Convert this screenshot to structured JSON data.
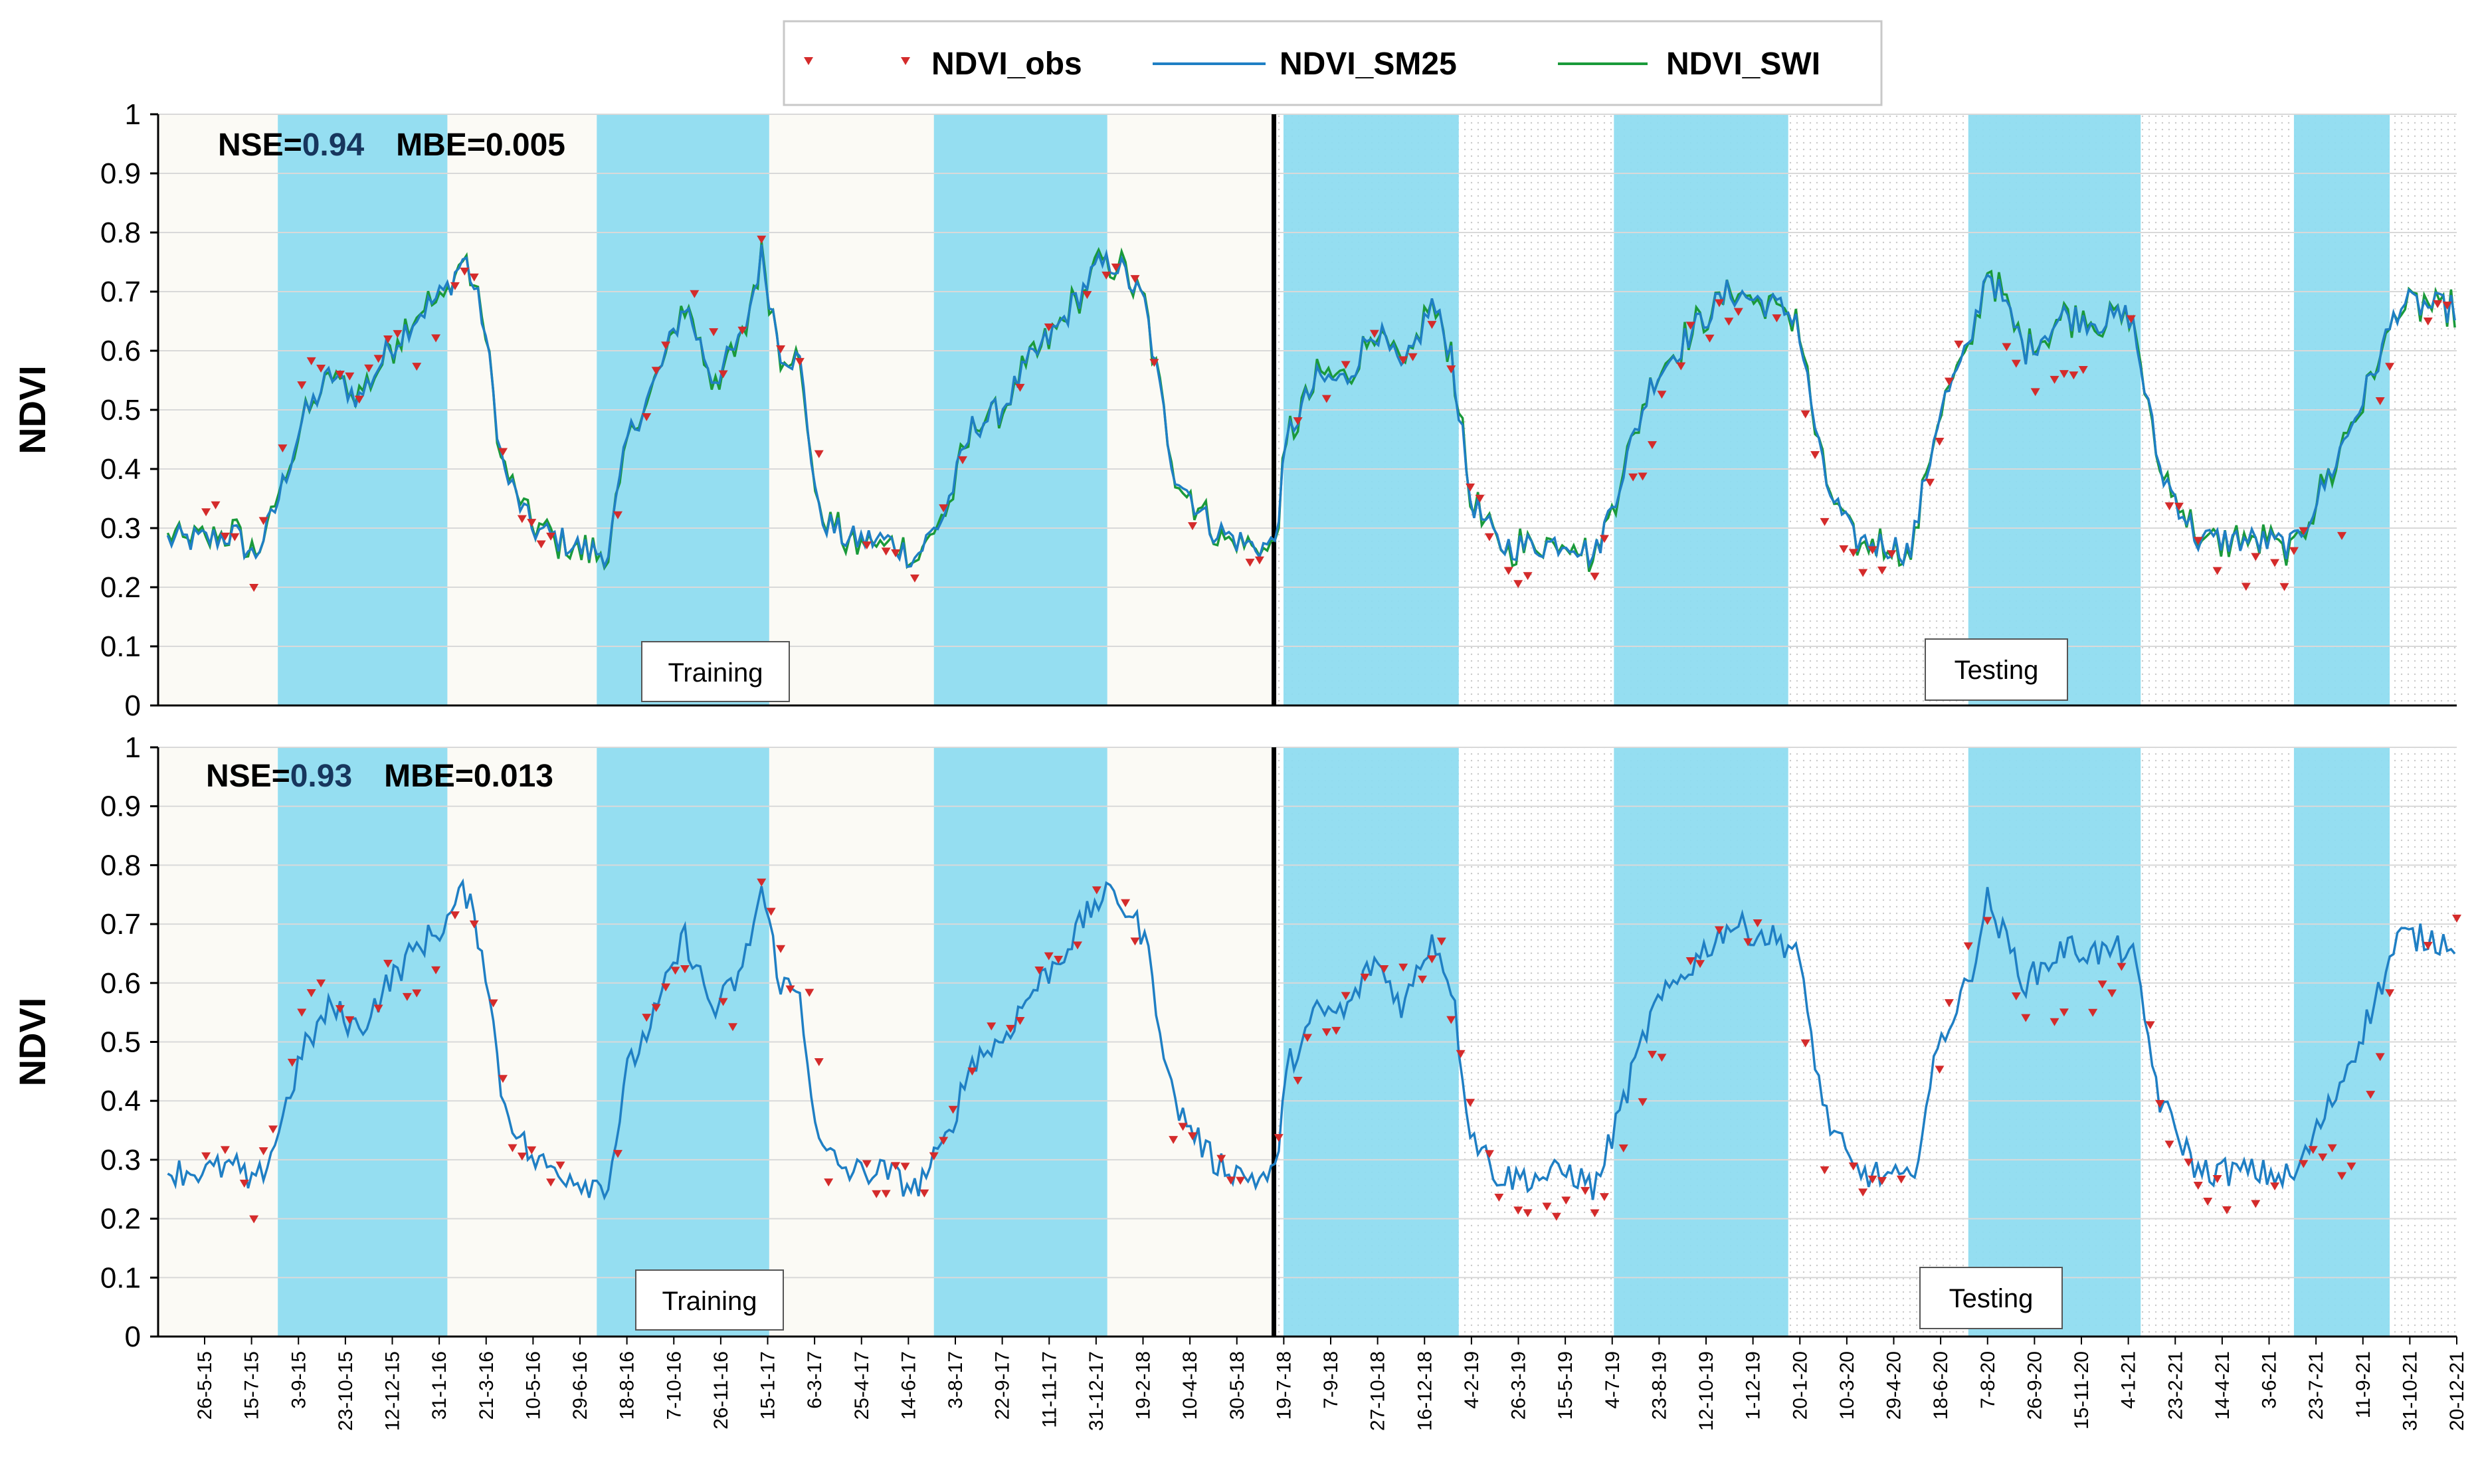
{
  "chart_data": {
    "type": "line",
    "legend": {
      "position": "top-center",
      "entries": [
        {
          "name": "NDVI_obs",
          "marker": "triangle-down",
          "color": "#d42b2b"
        },
        {
          "name": "NDVI_SM25",
          "marker": "line",
          "color": "#1f7fc4"
        },
        {
          "name": "NDVI_SWI",
          "marker": "line",
          "color": "#1a9a3a"
        }
      ]
    },
    "x_tick_labels": [
      "26-5-15",
      "15-7-15",
      "3-9-15",
      "23-10-15",
      "12-12-15",
      "31-1-16",
      "21-3-16",
      "10-5-16",
      "29-6-16",
      "18-8-16",
      "7-10-16",
      "26-11-16",
      "15-1-17",
      "6-3-17",
      "25-4-17",
      "14-6-17",
      "3-8-17",
      "22-9-17",
      "11-11-17",
      "31-12-17",
      "19-2-18",
      "10-4-18",
      "30-5-18",
      "19-7-18",
      "7-9-18",
      "27-10-18",
      "16-12-18",
      "4-2-19",
      "26-3-19",
      "15-5-19",
      "4-7-19",
      "23-8-19",
      "12-10-19",
      "1-12-19",
      "20-1-20",
      "10-3-20",
      "29-4-20",
      "18-6-20",
      "7-8-20",
      "26-9-20",
      "15-11-20",
      "4-1-21",
      "23-2-21",
      "14-4-21",
      "3-6-21",
      "23-7-21",
      "11-9-21",
      "31-10-21",
      "20-12-21"
    ],
    "x_range_days": [
      0,
      2400
    ],
    "season_bands_days": [
      [
        125,
        302
      ],
      [
        458,
        638
      ],
      [
        810,
        991
      ],
      [
        1175,
        1358
      ],
      [
        1520,
        1702
      ],
      [
        1890,
        2070
      ],
      [
        2230,
        2330
      ]
    ],
    "split_day": 1165,
    "phases": [
      "Training",
      "Testing"
    ],
    "panels": [
      {
        "ylabel": "NDVI",
        "ylim": [
          0,
          1
        ],
        "yticks": [
          "0",
          "0.1",
          "0.2",
          "0.3",
          "0.4",
          "0.5",
          "0.6",
          "0.7",
          "0.8",
          "0.9",
          "1"
        ],
        "grid": true,
        "nse_label": "NSE=",
        "nse": "0.94",
        "mbe_label": "MBE=",
        "mbe": "0.005",
        "series": [
          {
            "name": "NDVI_SM25",
            "color": "#1f7fc4"
          },
          {
            "name": "NDVI_SWI",
            "color": "#1a9a3a"
          }
        ]
      },
      {
        "ylabel": "NDVI",
        "ylim": [
          0,
          1
        ],
        "yticks": [
          "0",
          "0.1",
          "0.2",
          "0.3",
          "0.4",
          "0.5",
          "0.6",
          "0.7",
          "0.8",
          "0.9",
          "1"
        ],
        "grid": true,
        "nse_label": "NSE=",
        "nse": "0.93",
        "mbe_label": "MBE=",
        "mbe": "0.013",
        "series": [
          {
            "name": "NDVI_SM25",
            "color": "#1f7fc4"
          }
        ]
      }
    ],
    "model_keypoints": [
      [
        50,
        0.28
      ],
      [
        80,
        0.29
      ],
      [
        100,
        0.25
      ],
      [
        120,
        0.32
      ],
      [
        150,
        0.48
      ],
      [
        180,
        0.56
      ],
      [
        210,
        0.52
      ],
      [
        240,
        0.6
      ],
      [
        270,
        0.66
      ],
      [
        300,
        0.7
      ],
      [
        320,
        0.76
      ],
      [
        340,
        0.65
      ],
      [
        360,
        0.4
      ],
      [
        390,
        0.3
      ],
      [
        420,
        0.28
      ],
      [
        450,
        0.26
      ],
      [
        470,
        0.26
      ],
      [
        490,
        0.45
      ],
      [
        520,
        0.55
      ],
      [
        550,
        0.68
      ],
      [
        580,
        0.55
      ],
      [
        610,
        0.62
      ],
      [
        630,
        0.76
      ],
      [
        650,
        0.6
      ],
      [
        670,
        0.58
      ],
      [
        690,
        0.32
      ],
      [
        720,
        0.28
      ],
      [
        760,
        0.28
      ],
      [
        790,
        0.25
      ],
      [
        820,
        0.32
      ],
      [
        850,
        0.47
      ],
      [
        880,
        0.5
      ],
      [
        910,
        0.58
      ],
      [
        940,
        0.64
      ],
      [
        980,
        0.74
      ],
      [
        1000,
        0.75
      ],
      [
        1030,
        0.68
      ],
      [
        1060,
        0.4
      ],
      [
        1100,
        0.3
      ],
      [
        1140,
        0.27
      ],
      [
        1165,
        0.27
      ],
      [
        1180,
        0.46
      ],
      [
        1210,
        0.55
      ],
      [
        1240,
        0.55
      ],
      [
        1270,
        0.64
      ],
      [
        1300,
        0.56
      ],
      [
        1330,
        0.68
      ],
      [
        1350,
        0.6
      ],
      [
        1370,
        0.35
      ],
      [
        1400,
        0.27
      ],
      [
        1440,
        0.27
      ],
      [
        1475,
        0.28
      ],
      [
        1500,
        0.25
      ],
      [
        1530,
        0.4
      ],
      [
        1560,
        0.55
      ],
      [
        1600,
        0.63
      ],
      [
        1640,
        0.7
      ],
      [
        1680,
        0.68
      ],
      [
        1710,
        0.66
      ],
      [
        1740,
        0.38
      ],
      [
        1770,
        0.28
      ],
      [
        1810,
        0.27
      ],
      [
        1830,
        0.26
      ],
      [
        1860,
        0.5
      ],
      [
        1890,
        0.6
      ],
      [
        1910,
        0.74
      ],
      [
        1950,
        0.6
      ],
      [
        1990,
        0.66
      ],
      [
        2030,
        0.65
      ],
      [
        2060,
        0.66
      ],
      [
        2090,
        0.4
      ],
      [
        2130,
        0.28
      ],
      [
        2180,
        0.28
      ],
      [
        2230,
        0.27
      ],
      [
        2270,
        0.4
      ],
      [
        2310,
        0.55
      ],
      [
        2340,
        0.68
      ],
      [
        2400,
        0.67
      ]
    ],
    "obs_keypoints": [
      [
        52,
        0.32
      ],
      [
        80,
        0.29
      ],
      [
        100,
        0.22
      ],
      [
        140,
        0.49
      ],
      [
        170,
        0.59
      ],
      [
        210,
        0.53
      ],
      [
        250,
        0.63
      ],
      [
        280,
        0.55
      ],
      [
        320,
        0.75
      ],
      [
        340,
        0.66
      ],
      [
        370,
        0.31
      ],
      [
        410,
        0.27
      ],
      [
        440,
        0.25
      ],
      [
        470,
        0.24
      ],
      [
        500,
        0.48
      ],
      [
        530,
        0.59
      ],
      [
        560,
        0.68
      ],
      [
        600,
        0.55
      ],
      [
        630,
        0.78
      ],
      [
        650,
        0.63
      ],
      [
        680,
        0.6
      ],
      [
        700,
        0.29
      ],
      [
        740,
        0.27
      ],
      [
        780,
        0.26
      ],
      [
        800,
        0.23
      ],
      [
        830,
        0.4
      ],
      [
        860,
        0.5
      ],
      [
        900,
        0.56
      ],
      [
        940,
        0.64
      ],
      [
        980,
        0.73
      ],
      [
        1000,
        0.77
      ],
      [
        1030,
        0.66
      ],
      [
        1060,
        0.35
      ],
      [
        1100,
        0.3
      ],
      [
        1140,
        0.25
      ],
      [
        1160,
        0.27
      ],
      [
        1180,
        0.42
      ],
      [
        1210,
        0.52
      ],
      [
        1240,
        0.55
      ],
      [
        1270,
        0.65
      ],
      [
        1310,
        0.58
      ],
      [
        1340,
        0.66
      ],
      [
        1365,
        0.42
      ],
      [
        1400,
        0.24
      ],
      [
        1440,
        0.22
      ],
      [
        1470,
        0.23
      ],
      [
        1500,
        0.22
      ],
      [
        1530,
        0.32
      ],
      [
        1560,
        0.46
      ],
      [
        1600,
        0.62
      ],
      [
        1650,
        0.69
      ],
      [
        1690,
        0.66
      ],
      [
        1710,
        0.62
      ],
      [
        1740,
        0.3
      ],
      [
        1770,
        0.26
      ],
      [
        1810,
        0.24
      ],
      [
        1840,
        0.26
      ],
      [
        1870,
        0.55
      ],
      [
        1900,
        0.72
      ],
      [
        1940,
        0.58
      ],
      [
        1980,
        0.54
      ],
      [
        2030,
        0.57
      ],
      [
        2070,
        0.65
      ],
      [
        2090,
        0.38
      ],
      [
        2130,
        0.26
      ],
      [
        2180,
        0.22
      ],
      [
        2220,
        0.23
      ],
      [
        2250,
        0.3
      ],
      [
        2290,
        0.3
      ],
      [
        2320,
        0.5
      ],
      [
        2340,
        0.65
      ],
      [
        2400,
        0.7
      ]
    ]
  }
}
